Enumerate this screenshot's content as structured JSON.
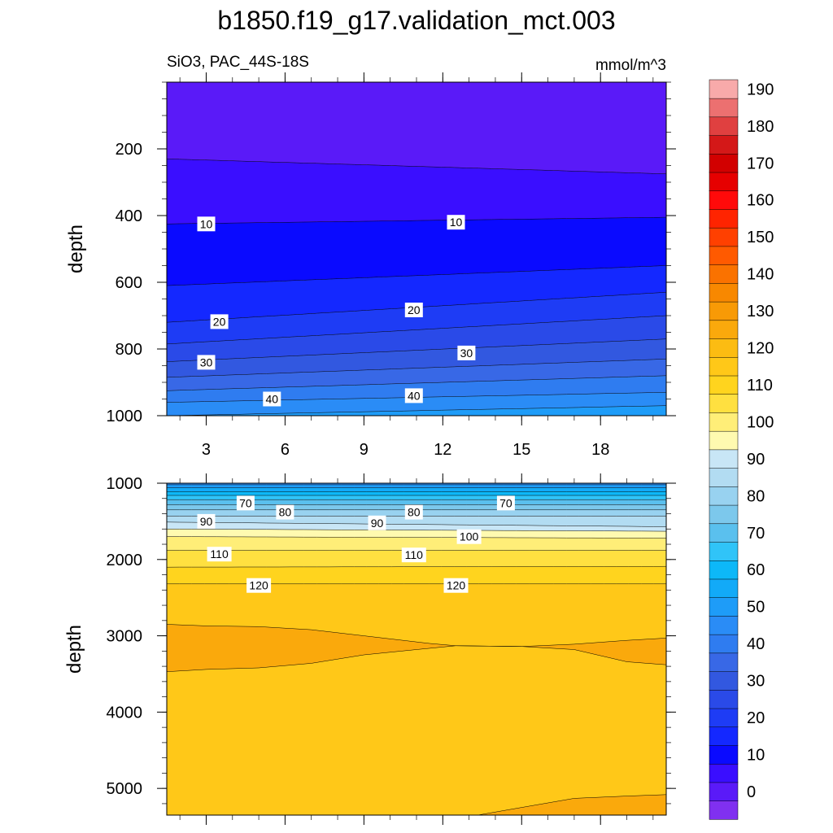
{
  "chart_data": {
    "type": "contour",
    "title": "b1850.f19_g17.validation_mct.003",
    "subtitle_left": "SiO3, PAC_44S-18S",
    "subtitle_right": "mmol/m^3",
    "xlabel": "",
    "ylabel": "depth",
    "x_ticks": [
      "3",
      "6",
      "9",
      "12",
      "15",
      "18"
    ],
    "x_range": [
      1.5,
      20.5
    ],
    "panels": [
      {
        "name": "upper",
        "depth_range": [
          0,
          1000
        ],
        "y_ticks": [
          "200",
          "400",
          "600",
          "800",
          "1000"
        ],
        "labels": [
          {
            "text": "10",
            "x": 3.0,
            "depth": 425
          },
          {
            "text": "10",
            "x": 12.5,
            "depth": 420
          },
          {
            "text": "20",
            "x": 3.5,
            "depth": 718
          },
          {
            "text": "20",
            "x": 10.9,
            "depth": 683
          },
          {
            "text": "30",
            "x": 3.0,
            "depth": 840
          },
          {
            "text": "30",
            "x": 12.9,
            "depth": 812
          },
          {
            "text": "40",
            "x": 5.5,
            "depth": 950
          },
          {
            "text": "40",
            "x": 10.9,
            "depth": 940
          }
        ]
      },
      {
        "name": "lower",
        "depth_range": [
          1000,
          5350
        ],
        "y_ticks": [
          "1000",
          "2000",
          "3000",
          "4000",
          "5000"
        ],
        "labels": [
          {
            "text": "70",
            "x": 4.5,
            "depth": 1260
          },
          {
            "text": "80",
            "x": 6.0,
            "depth": 1380
          },
          {
            "text": "90",
            "x": 3.0,
            "depth": 1500
          },
          {
            "text": "90",
            "x": 9.5,
            "depth": 1520
          },
          {
            "text": "80",
            "x": 10.9,
            "depth": 1380
          },
          {
            "text": "70",
            "x": 14.4,
            "depth": 1260
          },
          {
            "text": "100",
            "x": 13.0,
            "depth": 1700
          },
          {
            "text": "110",
            "x": 3.5,
            "depth": 1930
          },
          {
            "text": "110",
            "x": 10.9,
            "depth": 1940
          },
          {
            "text": "120",
            "x": 5.0,
            "depth": 2340
          },
          {
            "text": "120",
            "x": 12.5,
            "depth": 2340
          }
        ]
      }
    ],
    "colorbar": {
      "levels": [
        -5,
        0,
        5,
        10,
        15,
        20,
        25,
        30,
        35,
        40,
        45,
        50,
        55,
        60,
        65,
        70,
        75,
        80,
        85,
        90,
        95,
        100,
        105,
        110,
        115,
        120,
        125,
        130,
        135,
        140,
        145,
        150,
        155,
        160,
        165,
        170,
        175,
        180,
        185,
        190,
        195,
        200
      ],
      "tick_labels": [
        "0",
        "10",
        "20",
        "30",
        "40",
        "50",
        "60",
        "70",
        "80",
        "90",
        "100",
        "110",
        "120",
        "130",
        "140",
        "150",
        "160",
        "170",
        "180",
        "190"
      ],
      "colors": [
        "#8030F0",
        "#5A1AF8",
        "#3A0EFF",
        "#0A0AFF",
        "#1428FF",
        "#1E3CF5",
        "#2A4AE8",
        "#3258E0",
        "#3868E6",
        "#2F7CF0",
        "#2A8CF6",
        "#1E9CF8",
        "#12AAF8",
        "#0DB8F8",
        "#30C4F8",
        "#5AC0EE",
        "#7CC8EC",
        "#98D2F0",
        "#B2DCF2",
        "#C8E6F6",
        "#FFFAB0",
        "#FFEE78",
        "#FFE040",
        "#FFD41E",
        "#FFC818",
        "#FCBC12",
        "#FAA90C",
        "#F89A06",
        "#F88800",
        "#FA7200",
        "#FF5A00",
        "#FF4000",
        "#FF2400",
        "#FF0A0A",
        "#E60000",
        "#D20000",
        "#D41818",
        "#E04040",
        "#EC7070",
        "#F8AAAA"
      ]
    }
  }
}
